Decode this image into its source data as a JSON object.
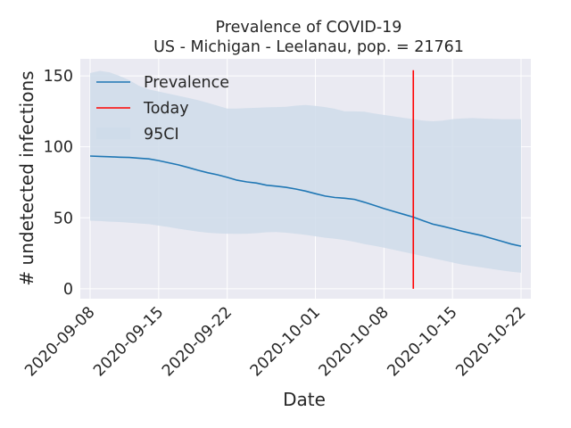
{
  "chart_data": {
    "type": "line",
    "title": "Prevalence of COVID-19",
    "subtitle": "US - Michigan - Leelanau, pop. = 21761",
    "xlabel": "Date",
    "ylabel": "# undetected infections",
    "x_start": "2020-09-08",
    "xlim": [
      "2020-09-07",
      "2020-10-23"
    ],
    "ylim": [
      -7,
      162
    ],
    "x_ticks": [
      "2020-09-08",
      "2020-09-15",
      "2020-09-22",
      "2020-10-01",
      "2020-10-08",
      "2020-10-15",
      "2020-10-22"
    ],
    "y_ticks": [
      0,
      50,
      100,
      150
    ],
    "grid": true,
    "legend_position": "top-left",
    "legend": [
      "Prevalence",
      "Today",
      "95CI"
    ],
    "colors": {
      "line": "#1f77b4",
      "today": "#ff0000",
      "band": "#cfdcea",
      "background": "#eaeaf2",
      "grid": "#ffffff"
    },
    "today": "2020-10-11",
    "x": [
      "2020-09-08",
      "2020-09-09",
      "2020-09-10",
      "2020-09-11",
      "2020-09-12",
      "2020-09-13",
      "2020-09-14",
      "2020-09-15",
      "2020-09-16",
      "2020-09-17",
      "2020-09-18",
      "2020-09-19",
      "2020-09-20",
      "2020-09-21",
      "2020-09-22",
      "2020-09-23",
      "2020-09-24",
      "2020-09-25",
      "2020-09-26",
      "2020-09-27",
      "2020-09-28",
      "2020-09-29",
      "2020-09-30",
      "2020-10-01",
      "2020-10-02",
      "2020-10-03",
      "2020-10-04",
      "2020-10-05",
      "2020-10-06",
      "2020-10-07",
      "2020-10-08",
      "2020-10-09",
      "2020-10-10",
      "2020-10-11",
      "2020-10-12",
      "2020-10-13",
      "2020-10-14",
      "2020-10-15",
      "2020-10-16",
      "2020-10-17",
      "2020-10-18",
      "2020-10-19",
      "2020-10-20",
      "2020-10-21",
      "2020-10-22"
    ],
    "series": [
      {
        "name": "Prevalence",
        "values": [
          93.5,
          93.3,
          93,
          92.7,
          92.5,
          92,
          91.5,
          90.3,
          88.8,
          87.3,
          85.5,
          83.5,
          81.8,
          80.3,
          78.5,
          76.5,
          75.3,
          74.5,
          73,
          72.3,
          71.5,
          70.3,
          68.8,
          67,
          65.3,
          64.3,
          63.8,
          63,
          61,
          58.8,
          56.5,
          54.5,
          52.5,
          50.5,
          48,
          45.5,
          44,
          42.3,
          40.5,
          39,
          37.5,
          35.5,
          33.5,
          31.5,
          30
        ]
      }
    ],
    "ci_lower": [
      48,
      47.7,
      47.3,
      47,
      46.5,
      46,
      45.5,
      44.5,
      43.5,
      42.3,
      41.3,
      40.3,
      39.5,
      39,
      38.8,
      38.7,
      38.8,
      39.2,
      39.8,
      40,
      39.5,
      38.8,
      38,
      37,
      36,
      35.3,
      34.3,
      33,
      31.5,
      30.3,
      29,
      27.5,
      26,
      24.5,
      23,
      21.5,
      20,
      18.5,
      17,
      16,
      15,
      14,
      13,
      12,
      11.3
    ],
    "ci_upper": [
      152,
      153.5,
      152.5,
      150,
      147,
      143,
      140.5,
      139,
      137.5,
      136,
      134.5,
      133,
      131,
      129,
      127,
      127,
      127.3,
      127.5,
      127.8,
      128,
      128.2,
      129,
      129.5,
      128.8,
      128,
      126.8,
      125,
      125,
      124.8,
      123.5,
      122.5,
      121.5,
      120.5,
      119.5,
      118.5,
      118,
      118.5,
      119.5,
      120,
      120.3,
      120,
      119.8,
      119.5,
      119.5,
      119.5
    ]
  }
}
